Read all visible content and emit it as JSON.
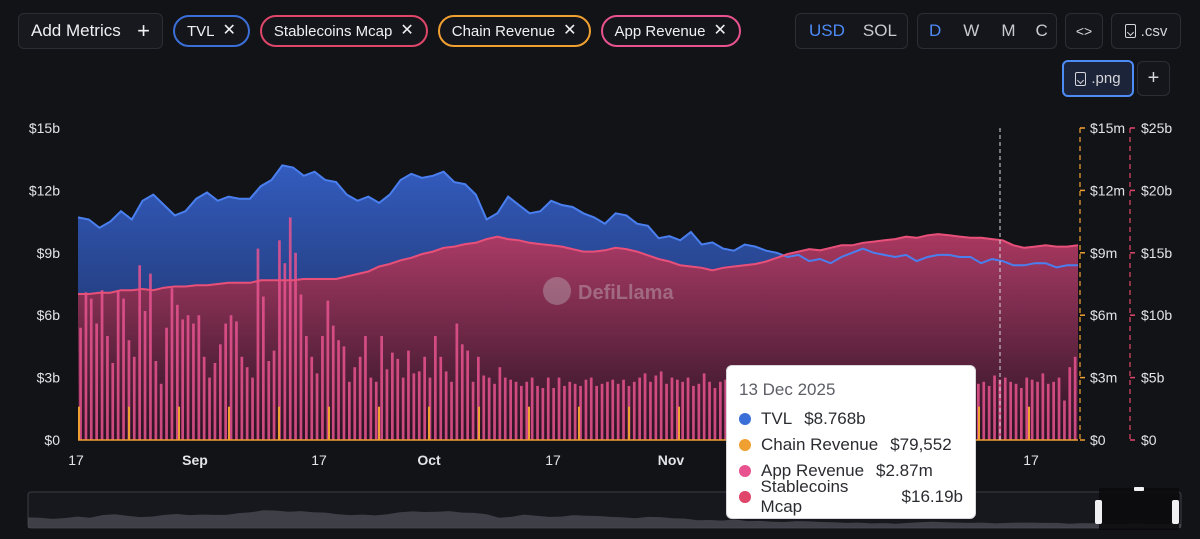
{
  "toolbar": {
    "add_metrics_label": "Add Metrics",
    "chips": [
      {
        "label": "TVL",
        "color": "#3b6fd8"
      },
      {
        "label": "Stablecoins Mcap",
        "color": "#e0466a"
      },
      {
        "label": "Chain Revenue",
        "color": "#f0a031"
      },
      {
        "label": "App Revenue",
        "color": "#e8538f"
      }
    ],
    "currency": {
      "options": [
        "USD",
        "SOL"
      ],
      "selected": "USD"
    },
    "period": {
      "options": [
        "D",
        "W",
        "M",
        "C"
      ],
      "selected": "D"
    },
    "embed_label": "<>",
    "csv_label": ".csv",
    "png_label": ".png",
    "more_label": "+"
  },
  "watermark": "DefiLlama",
  "tooltip": {
    "date": "13 Dec 2025",
    "rows": [
      {
        "name": "TVL",
        "value": "$8.768b",
        "color": "#3b6fd8"
      },
      {
        "name": "Chain Revenue",
        "value": "$79,552",
        "color": "#f0a031"
      },
      {
        "name": "App Revenue",
        "value": "$2.87m",
        "color": "#e8538f"
      },
      {
        "name": "Stablecoins Mcap",
        "value": "$16.19b",
        "color": "#e0466a"
      }
    ]
  },
  "chart_data": {
    "type": "area",
    "x_ticks": [
      "17",
      "Sep",
      "17",
      "Oct",
      "17",
      "Nov",
      "17"
    ],
    "y_left": {
      "ticks": [
        "$0",
        "$3b",
        "$6b",
        "$9b",
        "$12b",
        "$15b"
      ],
      "range": [
        0,
        15
      ]
    },
    "y_mid": {
      "ticks": [
        "$0",
        "$3m",
        "$6m",
        "$9m",
        "$12m",
        "$15m"
      ],
      "range": [
        0,
        15
      ]
    },
    "y_right": {
      "ticks": [
        "$0",
        "$5b",
        "$10b",
        "$15b",
        "$20b",
        "$25b"
      ],
      "range": [
        0,
        25
      ]
    },
    "series": [
      {
        "name": "TVL",
        "axis": "left",
        "unit": "b",
        "color": "#3b6fd8",
        "values": [
          10.7,
          10.6,
          10.2,
          10.5,
          11.0,
          10.6,
          11.5,
          11.8,
          11.3,
          10.8,
          11.0,
          11.6,
          11.9,
          11.5,
          11.7,
          11.6,
          11.6,
          12.2,
          12.5,
          13.2,
          13.1,
          12.7,
          12.9,
          12.5,
          12.4,
          11.8,
          11.5,
          11.7,
          11.4,
          11.8,
          12.5,
          12.8,
          12.6,
          12.7,
          12.9,
          12.4,
          12.3,
          11.8,
          10.6,
          10.9,
          11.7,
          11.3,
          10.9,
          11.0,
          11.5,
          11.3,
          11.2,
          10.9,
          10.7,
          10.4,
          10.9,
          10.8,
          10.4,
          10.3,
          9.7,
          9.8,
          9.6,
          10.0,
          9.4,
          9.5,
          9.2,
          9.1,
          9.4,
          9.3,
          9.1,
          9.0,
          8.8,
          8.9,
          8.6,
          8.7,
          8.5,
          8.8,
          9.0,
          9.2,
          9.0,
          8.9,
          8.8,
          8.9,
          8.6,
          8.8,
          8.9,
          8.9,
          8.8,
          8.8,
          8.5,
          8.7,
          8.6,
          8.4,
          8.4,
          8.5,
          8.5,
          8.3,
          8.4,
          8.4
        ]
      },
      {
        "name": "Stablecoins Mcap",
        "axis": "right",
        "unit": "b",
        "color": "#e0466a",
        "values": [
          11.7,
          11.7,
          11.8,
          11.8,
          12.0,
          12.0,
          12.1,
          12.0,
          12.2,
          12.3,
          12.3,
          12.4,
          12.4,
          12.5,
          12.6,
          12.6,
          12.6,
          12.8,
          12.8,
          12.8,
          12.8,
          12.9,
          12.9,
          12.9,
          12.9,
          13.1,
          13.3,
          13.5,
          13.9,
          14.1,
          14.4,
          14.6,
          14.9,
          15.1,
          15.4,
          15.5,
          15.7,
          15.8,
          16.1,
          16.3,
          16.1,
          16.0,
          15.8,
          15.7,
          15.6,
          15.5,
          15.3,
          15.1,
          15.1,
          15.2,
          15.4,
          15.3,
          15.1,
          14.8,
          14.5,
          14.3,
          14.0,
          13.9,
          13.8,
          13.6,
          13.8,
          13.9,
          14.0,
          14.1,
          14.3,
          14.6,
          14.9,
          15.1,
          15.3,
          15.2,
          15.4,
          15.6,
          15.6,
          15.8,
          15.9,
          16.0,
          16.1,
          16.3,
          16.2,
          16.4,
          16.5,
          16.4,
          16.3,
          16.2,
          16.2,
          16.1,
          16.0,
          15.6,
          15.4,
          15.5,
          15.6,
          15.5,
          15.5,
          15.6
        ]
      },
      {
        "name": "App Revenue",
        "axis": "mid",
        "unit": "m",
        "color": "#e8538f",
        "values": [
          5.4,
          7.1,
          6.8,
          5.6,
          7.2,
          5.0,
          3.7,
          7.2,
          6.8,
          4.8,
          4.0,
          8.4,
          6.2,
          8.0,
          3.8,
          2.7,
          5.4,
          7.3,
          6.5,
          5.8,
          6.0,
          5.6,
          6.0,
          4.0,
          3.0,
          3.7,
          4.6,
          5.6,
          6.0,
          5.7,
          4.0,
          3.5,
          3.0,
          9.2,
          6.9,
          3.8,
          4.3,
          9.6,
          8.5,
          10.7,
          9.0,
          7.0,
          5.0,
          4.0,
          3.2,
          5.0,
          6.7,
          5.5,
          4.8,
          4.5,
          2.8,
          3.5,
          4.0,
          5.0,
          3.0,
          2.8,
          5.0,
          3.4,
          4.2,
          3.9,
          3.0,
          4.3,
          3.2,
          3.3,
          4.0,
          3.0,
          5.0,
          4.0,
          3.3,
          2.8,
          5.6,
          4.6,
          4.3,
          2.8,
          4.0,
          3.1,
          3.0,
          2.7,
          3.5,
          3.0,
          2.9,
          2.8,
          2.6,
          2.8,
          3.0,
          2.6,
          2.5,
          3.0,
          2.5,
          3.0,
          2.6,
          2.8,
          2.7,
          2.6,
          2.9,
          3.0,
          2.6,
          2.7,
          2.8,
          2.9,
          2.7,
          2.9,
          2.6,
          2.8,
          3.0,
          3.2,
          2.8,
          3.1,
          3.3,
          2.7,
          3.0,
          2.9,
          2.8,
          3.0,
          2.6,
          2.7,
          3.2,
          2.8,
          2.5,
          2.8,
          2.9,
          3.0,
          2.7,
          2.9,
          3.1,
          2.8,
          2.6,
          2.7,
          2.8,
          3.0,
          2.9,
          2.8,
          2.7,
          2.9,
          3.0,
          2.8,
          2.6,
          2.7,
          2.9,
          2.8,
          3.1,
          2.8,
          2.5,
          2.8,
          3.0,
          2.9,
          2.7,
          2.8,
          2.6,
          2.9,
          2.5,
          2.8,
          2.9,
          3.1,
          2.7,
          2.9,
          3.4,
          2.8,
          3.0,
          2.5,
          2.7,
          2.9,
          2.6,
          2.8,
          3.0,
          2.9,
          3.3,
          2.7,
          2.8,
          2.6,
          3.1,
          2.9,
          3.0,
          2.8,
          2.7,
          2.5,
          3.0,
          2.9,
          2.8,
          3.2,
          2.7,
          2.8,
          3.0,
          1.9,
          3.5,
          4.0
        ]
      },
      {
        "name": "Chain Revenue",
        "axis": "mid",
        "unit": "m",
        "color": "#f0a031",
        "values": [
          0.08,
          0.08,
          0.08,
          0.08,
          0.08,
          0.08,
          0.08,
          0.08,
          0.08,
          0.08,
          0.08,
          0.08,
          0.08,
          0.08,
          0.08,
          0.08,
          0.08,
          0.08,
          0.08,
          0.08
        ]
      }
    ],
    "cursor_date": "13 Dec 2025",
    "grid": false,
    "legend": "top"
  }
}
